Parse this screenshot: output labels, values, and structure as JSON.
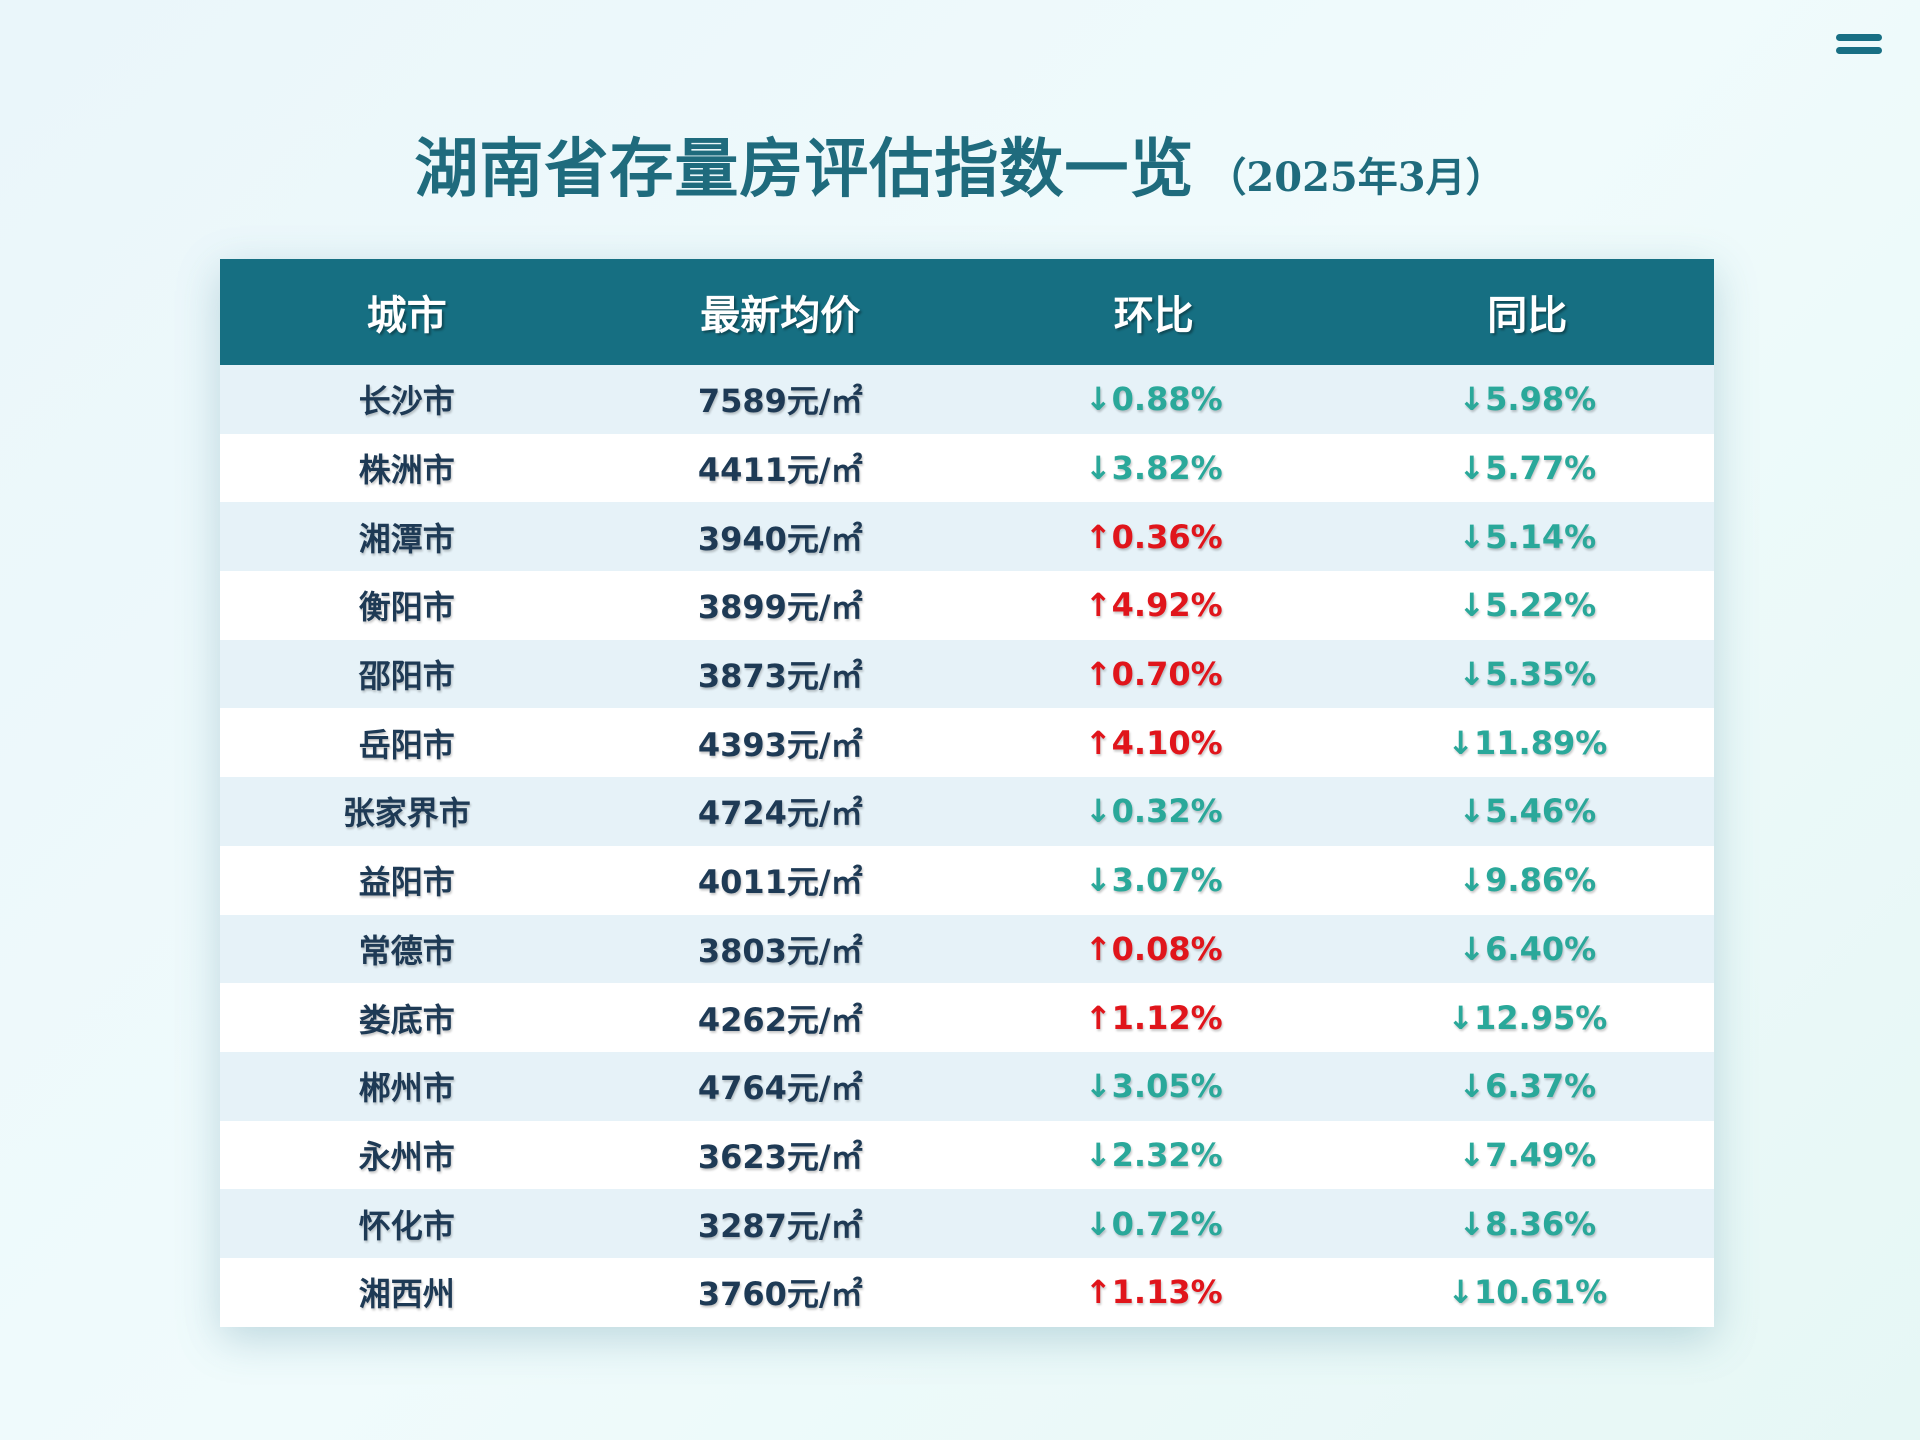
{
  "title": "湖南省存量房评估指数一览",
  "subtitle": "（2025年3月）",
  "menu_icon": "menu-icon",
  "colors": {
    "header_bg": "#166f82",
    "title": "#1f6b7d",
    "down": "#2aa89a",
    "up": "#e0151b",
    "row_alt": "#e6f2f8"
  },
  "table": {
    "headers": [
      "城市",
      "最新均价",
      "环比",
      "同比"
    ],
    "rows": [
      {
        "city": "长沙市",
        "price": "7589元/㎡",
        "mom": "↓0.88%",
        "mom_dir": "down",
        "yoy": "↓5.98%",
        "yoy_dir": "down"
      },
      {
        "city": "株洲市",
        "price": "4411元/㎡",
        "mom": "↓3.82%",
        "mom_dir": "down",
        "yoy": "↓5.77%",
        "yoy_dir": "down"
      },
      {
        "city": "湘潭市",
        "price": "3940元/㎡",
        "mom": "↑0.36%",
        "mom_dir": "up",
        "yoy": "↓5.14%",
        "yoy_dir": "down"
      },
      {
        "city": "衡阳市",
        "price": "3899元/㎡",
        "mom": "↑4.92%",
        "mom_dir": "up",
        "yoy": "↓5.22%",
        "yoy_dir": "down"
      },
      {
        "city": "邵阳市",
        "price": "3873元/㎡",
        "mom": "↑0.70%",
        "mom_dir": "up",
        "yoy": "↓5.35%",
        "yoy_dir": "down"
      },
      {
        "city": "岳阳市",
        "price": "4393元/㎡",
        "mom": "↑4.10%",
        "mom_dir": "up",
        "yoy": "↓11.89%",
        "yoy_dir": "down"
      },
      {
        "city": "张家界市",
        "price": "4724元/㎡",
        "mom": "↓0.32%",
        "mom_dir": "down",
        "yoy": "↓5.46%",
        "yoy_dir": "down"
      },
      {
        "city": "益阳市",
        "price": "4011元/㎡",
        "mom": "↓3.07%",
        "mom_dir": "down",
        "yoy": "↓9.86%",
        "yoy_dir": "down"
      },
      {
        "city": "常德市",
        "price": "3803元/㎡",
        "mom": "↑0.08%",
        "mom_dir": "up",
        "yoy": "↓6.40%",
        "yoy_dir": "down"
      },
      {
        "city": "娄底市",
        "price": "4262元/㎡",
        "mom": "↑1.12%",
        "mom_dir": "up",
        "yoy": "↓12.95%",
        "yoy_dir": "down"
      },
      {
        "city": "郴州市",
        "price": "4764元/㎡",
        "mom": "↓3.05%",
        "mom_dir": "down",
        "yoy": "↓6.37%",
        "yoy_dir": "down"
      },
      {
        "city": "永州市",
        "price": "3623元/㎡",
        "mom": "↓2.32%",
        "mom_dir": "down",
        "yoy": "↓7.49%",
        "yoy_dir": "down"
      },
      {
        "city": "怀化市",
        "price": "3287元/㎡",
        "mom": "↓0.72%",
        "mom_dir": "down",
        "yoy": "↓8.36%",
        "yoy_dir": "down"
      },
      {
        "city": "湘西州",
        "price": "3760元/㎡",
        "mom": "↑1.13%",
        "mom_dir": "up",
        "yoy": "↓10.61%",
        "yoy_dir": "down"
      }
    ]
  }
}
